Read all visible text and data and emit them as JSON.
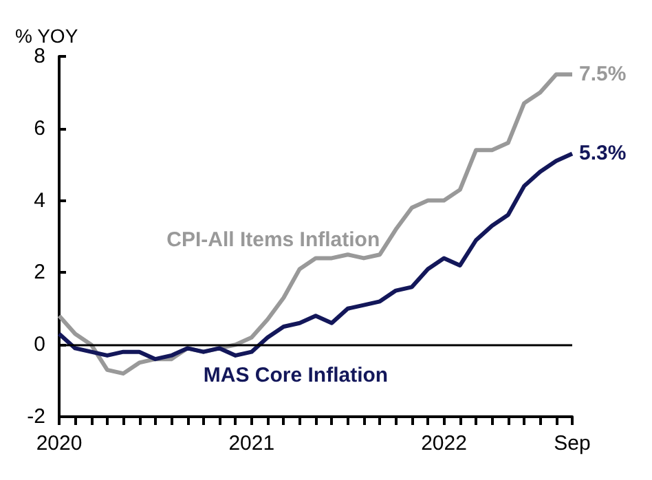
{
  "chart_data": {
    "type": "line",
    "ylabel": "% YOY",
    "categories": [
      "2020",
      null,
      null,
      null,
      null,
      null,
      null,
      null,
      null,
      null,
      null,
      null,
      "2021",
      null,
      null,
      null,
      null,
      null,
      null,
      null,
      null,
      null,
      null,
      null,
      "2022",
      null,
      null,
      null,
      null,
      null,
      null,
      null,
      "Sep"
    ],
    "series": [
      {
        "name": "CPI-All Items Inflation",
        "color": "#999999",
        "values": [
          0.8,
          0.3,
          0.0,
          -0.7,
          -0.8,
          -0.5,
          -0.4,
          -0.4,
          -0.1,
          -0.2,
          -0.1,
          0.0,
          0.2,
          0.7,
          1.3,
          2.1,
          2.4,
          2.4,
          2.5,
          2.4,
          2.5,
          3.2,
          3.8,
          4.0,
          4.0,
          4.3,
          5.4,
          5.4,
          5.6,
          6.7,
          7.0,
          7.5,
          7.5
        ],
        "value_labels": [
          null,
          null,
          null,
          null,
          null,
          null,
          null,
          null,
          null,
          null,
          null,
          null,
          null,
          null,
          null,
          null,
          null,
          null,
          null,
          null,
          null,
          null,
          null,
          null,
          null,
          null,
          null,
          null,
          null,
          null,
          null,
          null,
          "7.5%"
        ]
      },
      {
        "name": "MAS Core Inflation",
        "color": "#13175a",
        "values": [
          0.3,
          -0.1,
          -0.2,
          -0.3,
          -0.2,
          -0.2,
          -0.4,
          -0.3,
          -0.1,
          -0.2,
          -0.1,
          -0.3,
          -0.2,
          0.2,
          0.5,
          0.6,
          0.8,
          0.6,
          1.0,
          1.1,
          1.2,
          1.5,
          1.6,
          2.1,
          2.4,
          2.2,
          2.9,
          3.3,
          3.6,
          4.4,
          4.8,
          5.1,
          5.3
        ],
        "value_labels": [
          null,
          null,
          null,
          null,
          null,
          null,
          null,
          null,
          null,
          null,
          null,
          null,
          null,
          null,
          null,
          null,
          null,
          null,
          null,
          null,
          null,
          null,
          null,
          null,
          null,
          null,
          null,
          null,
          null,
          null,
          null,
          null,
          "5.3%"
        ]
      }
    ],
    "ylim": [
      -2,
      8
    ],
    "yticks": [
      -2,
      0,
      2,
      4,
      6,
      8
    ],
    "grid": false,
    "legend": false,
    "marker": "none",
    "line_style": "solid",
    "ref_lines": [
      {
        "axis": "y",
        "value": 0,
        "color": "#000000"
      }
    ]
  }
}
